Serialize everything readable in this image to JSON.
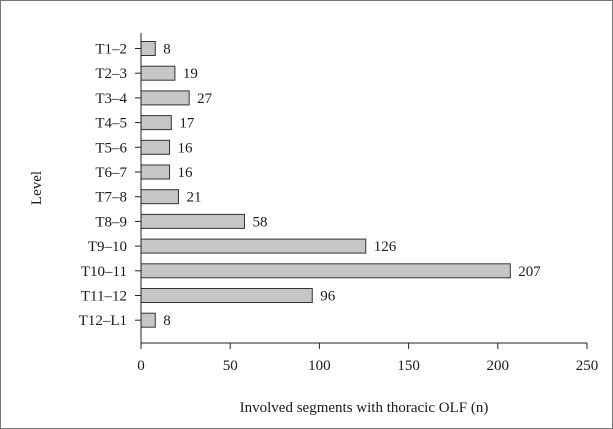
{
  "chart_data": {
    "type": "bar",
    "orientation": "horizontal",
    "categories": [
      "T1–2",
      "T2–3",
      "T3–4",
      "T4–5",
      "T5–6",
      "T6–7",
      "T7–8",
      "T8–9",
      "T9–10",
      "T10–11",
      "T11–12",
      "T12–L1"
    ],
    "values": [
      8,
      19,
      27,
      17,
      16,
      16,
      21,
      58,
      126,
      207,
      96,
      8
    ],
    "title": "",
    "xlabel": "Involved segments with thoracic OLF (n)",
    "ylabel": "Level",
    "xlim": [
      0,
      250
    ],
    "xticks": [
      0,
      50,
      100,
      150,
      200,
      250
    ],
    "grid": false,
    "legend": "none",
    "bar_color": "#c6c6c6",
    "bar_edge_color": "#333333"
  }
}
